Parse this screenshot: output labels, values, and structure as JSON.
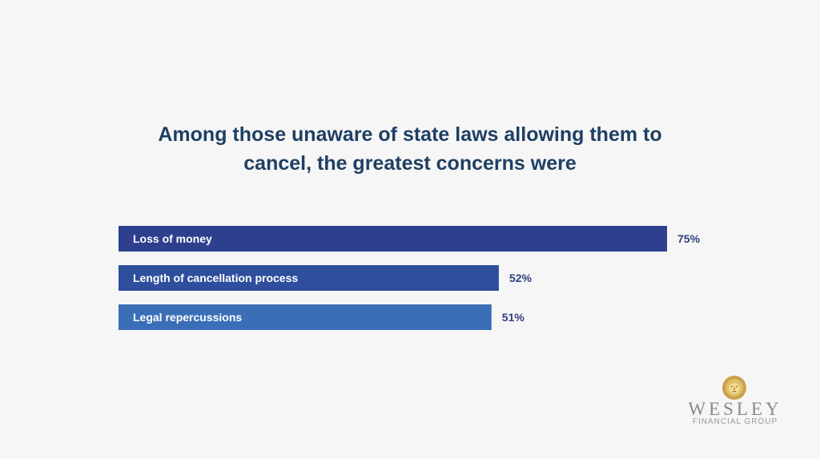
{
  "chart_data": {
    "type": "bar",
    "orientation": "horizontal",
    "title_lines": [
      "Among those unaware of state laws allowing them to",
      "cancel, the greatest concerns were"
    ],
    "categories": [
      "Loss of money",
      "Length of cancellation process",
      "Legal repercussions"
    ],
    "values": [
      75,
      52,
      51
    ],
    "value_labels": [
      "75%",
      "52%",
      "51%"
    ],
    "unit": "%",
    "xlim": [
      0,
      100
    ],
    "grid": false,
    "legend": "none",
    "bar_colors": [
      "#2e3f8e",
      "#2f4f9e",
      "#3a6fb8"
    ]
  },
  "colors": {
    "background": "#f6f6f6",
    "title": "#1f3f63",
    "value_label": "#2e3f7c",
    "logo_gold": "#c9a24a",
    "logo_gray": "#8a8a8a"
  },
  "logo": {
    "icon": "lion-head-icon",
    "name": "WESLEY",
    "subtitle": "FINANCIAL GROUP"
  }
}
